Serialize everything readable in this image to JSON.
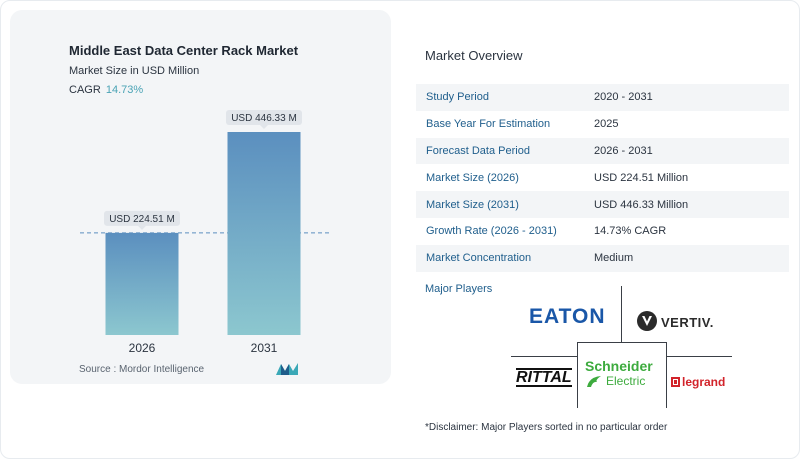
{
  "chart_data": {
    "type": "bar",
    "title": "Middle East Data Center Rack Market",
    "subtitle": "Market Size in USD Million",
    "cagr_label": "CAGR",
    "cagr_value": "14.73%",
    "categories": [
      "2026",
      "2031"
    ],
    "values": [
      224.51,
      446.33
    ],
    "data_labels": [
      "USD 224.51 M",
      "USD 446.33 M"
    ],
    "ylim": [
      0,
      446.33
    ],
    "grid": false,
    "colors": {
      "bar_top": "#5b8fbf",
      "bar_bottom": "#8cc7cf",
      "label_bg": "#e1e5ea",
      "ref_line": "#5b8fbf"
    }
  },
  "source": "Source :  Mordor Intelligence",
  "overview": {
    "title": "Market Overview",
    "rows": [
      {
        "key": "Study Period",
        "value": "2020 - 2031"
      },
      {
        "key": "Base Year For Estimation",
        "value": "2025"
      },
      {
        "key": "Forecast Data Period",
        "value": "2026 - 2031"
      },
      {
        "key": "Market Size (2026)",
        "value": "USD 224.51 Million"
      },
      {
        "key": "Market Size (2031)",
        "value": "USD 446.33 Million"
      },
      {
        "key": "Growth Rate (2026 - 2031)",
        "value": "14.73% CAGR"
      },
      {
        "key": "Market Concentration",
        "value": "Medium"
      }
    ]
  },
  "players": {
    "title": "Major Players",
    "logos": [
      "EATON",
      "VERTIV.",
      "RITTAL",
      "Schneider",
      "Electric",
      "legrand"
    ]
  },
  "disclaimer": "*Disclaimer: Major Players sorted in no particular order"
}
